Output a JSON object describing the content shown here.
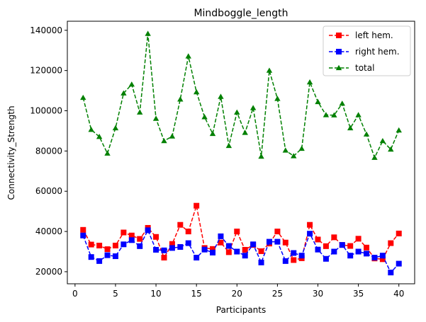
{
  "chart_data": {
    "type": "line",
    "title": "Mindboggle_length",
    "xlabel": "Participants",
    "ylabel": "Connectivity_Strength",
    "xlim": [
      -0.95,
      41.95
    ],
    "ylim": [
      14000,
      144500
    ],
    "xticks": [
      0,
      5,
      10,
      15,
      20,
      25,
      30,
      35,
      40
    ],
    "yticks": [
      20000,
      40000,
      60000,
      80000,
      100000,
      120000,
      140000
    ],
    "grid": false,
    "legend_position": "top-right",
    "x": [
      1,
      2,
      3,
      4,
      5,
      6,
      7,
      8,
      9,
      10,
      11,
      12,
      13,
      14,
      15,
      16,
      17,
      18,
      19,
      20,
      21,
      22,
      23,
      24,
      25,
      26,
      27,
      28,
      29,
      30,
      31,
      32,
      33,
      34,
      35,
      36,
      37,
      38,
      39,
      40
    ],
    "series": [
      {
        "name": "left hem.",
        "color": "#ff0000",
        "marker": "square",
        "values": [
          40800,
          33500,
          33000,
          31200,
          33000,
          39500,
          38000,
          36300,
          41800,
          37300,
          27000,
          33800,
          43300,
          40000,
          52800,
          31800,
          31300,
          34500,
          29700,
          40000,
          30900,
          33300,
          30200,
          34000,
          40000,
          34500,
          25800,
          26700,
          43300,
          36000,
          32700,
          37100,
          33300,
          32800,
          36400,
          32000,
          26600,
          26200,
          34200,
          39000
        ]
      },
      {
        "name": "right hem.",
        "color": "#0000ff",
        "marker": "square",
        "values": [
          38000,
          27300,
          25300,
          28200,
          27700,
          33600,
          35700,
          32700,
          40600,
          30900,
          30600,
          31800,
          32300,
          34200,
          27000,
          31000,
          29500,
          37600,
          32800,
          30000,
          28000,
          33600,
          24600,
          34900,
          34900,
          25300,
          29300,
          28000,
          38900,
          31000,
          26400,
          30000,
          33300,
          28000,
          30000,
          29000,
          27000,
          28000,
          19600,
          24000
        ]
      },
      {
        "name": "total",
        "color": "#008000",
        "marker": "triangle",
        "values": [
          106500,
          90600,
          87100,
          78800,
          91400,
          108700,
          113100,
          99200,
          138300,
          96100,
          85000,
          87300,
          105700,
          127100,
          109300,
          96900,
          88600,
          107000,
          82600,
          99200,
          89100,
          101400,
          77300,
          120000,
          106000,
          80300,
          77500,
          81200,
          114200,
          104400,
          97900,
          97800,
          103600,
          91400,
          97900,
          88300,
          76700,
          85000,
          80800,
          90300
        ]
      }
    ]
  }
}
